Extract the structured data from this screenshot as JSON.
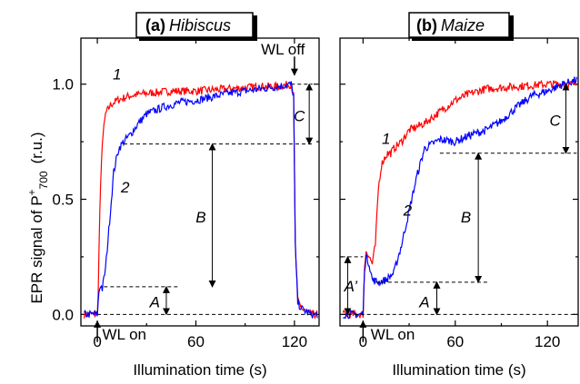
{
  "chart_data": [
    {
      "type": "line",
      "title_label": "(a)",
      "title_species": "Hibiscus",
      "xlabel": "Illumination time (s)",
      "ylabel_main": "EPR signal of P",
      "ylabel_sup": "+",
      "ylabel_sub": "700",
      "ylabel_unit": "(r.u.)",
      "xlim": [
        -10,
        135
      ],
      "ylim": [
        -0.05,
        1.2
      ],
      "xticks": [
        0,
        60,
        120
      ],
      "yticks": [
        0.0,
        0.5,
        1.0
      ],
      "ytick_labels": [
        "0.0",
        "0.5",
        "1.0"
      ],
      "colors": {
        "1": "#ff0000",
        "2": "#0000ff"
      },
      "series": [
        {
          "name": "1",
          "x": [
            -5,
            0,
            0.5,
            1.5,
            3,
            5,
            8,
            12,
            20,
            30,
            45,
            60,
            80,
            100,
            110,
            118,
            119.5,
            120.5,
            122,
            125,
            130,
            135
          ],
          "y": [
            0.0,
            0.0,
            0.1,
            0.45,
            0.75,
            0.87,
            0.91,
            0.93,
            0.95,
            0.96,
            0.97,
            0.97,
            0.98,
            0.99,
            0.99,
            1.0,
            0.95,
            0.3,
            0.06,
            0.02,
            0.0,
            0.0
          ]
        },
        {
          "name": "2",
          "x": [
            -5,
            0,
            1,
            2,
            3,
            5,
            8,
            10,
            13,
            16,
            20,
            25,
            30,
            40,
            50,
            60,
            80,
            100,
            110,
            118,
            119.5,
            120.5,
            122,
            125,
            130,
            135
          ],
          "y": [
            0.0,
            0.0,
            0.1,
            0.13,
            0.11,
            0.2,
            0.45,
            0.62,
            0.72,
            0.75,
            0.78,
            0.83,
            0.87,
            0.9,
            0.92,
            0.93,
            0.96,
            0.98,
            0.99,
            1.0,
            0.95,
            0.3,
            0.05,
            0.02,
            0.0,
            0.0
          ]
        }
      ],
      "annotations": {
        "curve1": "1",
        "curve2": "2",
        "A": "A",
        "B": "B",
        "C": "C",
        "wl_on": "WL on",
        "wl_off": "WL off",
        "levels": {
          "A": [
            0.0,
            0.12
          ],
          "B": [
            0.12,
            0.74
          ],
          "C": [
            0.74,
            1.0
          ]
        }
      }
    },
    {
      "type": "line",
      "title_label": "(b)",
      "title_species": "Maize",
      "xlabel": "Illumination time (s)",
      "xlim": [
        -15,
        140
      ],
      "ylim": [
        -0.05,
        1.2
      ],
      "xticks": [
        0,
        60,
        120
      ],
      "yticks": [
        0.0,
        0.5,
        1.0
      ],
      "colors": {
        "1": "#ff0000",
        "2": "#0000ff"
      },
      "series": [
        {
          "name": "1",
          "x": [
            -12,
            0,
            1,
            2,
            4,
            6,
            8,
            10,
            12,
            14,
            16,
            18,
            20,
            25,
            30,
            40,
            50,
            60,
            70,
            80,
            100,
            120,
            140
          ],
          "y": [
            0.0,
            0.0,
            0.2,
            0.28,
            0.25,
            0.22,
            0.3,
            0.55,
            0.65,
            0.68,
            0.7,
            0.7,
            0.72,
            0.75,
            0.8,
            0.83,
            0.88,
            0.93,
            0.96,
            0.98,
            0.99,
            1.0,
            1.0
          ]
        },
        {
          "name": "2",
          "x": [
            -12,
            0,
            1,
            2,
            4,
            6,
            10,
            15,
            20,
            25,
            30,
            35,
            40,
            50,
            60,
            70,
            80,
            90,
            100,
            110,
            120,
            130,
            140
          ],
          "y": [
            0.0,
            0.0,
            0.2,
            0.25,
            0.22,
            0.15,
            0.14,
            0.15,
            0.18,
            0.3,
            0.45,
            0.6,
            0.72,
            0.76,
            0.75,
            0.78,
            0.8,
            0.84,
            0.9,
            0.95,
            0.97,
            1.0,
            1.02
          ]
        }
      ],
      "annotations": {
        "curve1": "1",
        "curve2": "2",
        "A_prime": "A’",
        "A": "A",
        "B": "B",
        "C": "C",
        "wl_on": "WL on",
        "levels": {
          "A_prime": [
            0.0,
            0.25
          ],
          "A": [
            0.0,
            0.14
          ],
          "B": [
            0.14,
            0.7
          ],
          "C": [
            0.7,
            1.0
          ]
        }
      }
    }
  ]
}
